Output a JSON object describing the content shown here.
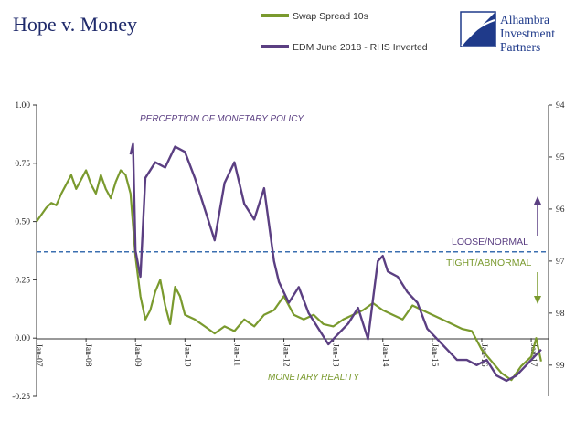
{
  "chart_data": {
    "type": "line",
    "title": "Hope v. Money",
    "x_ticks": [
      "Jan-07",
      "Jan-08",
      "Jan-09",
      "Jan-10",
      "Jan-11",
      "Jan-12",
      "Jan-13",
      "Jan-14",
      "Jan-15",
      "Jan-16",
      "Jan-17"
    ],
    "y_left": {
      "ticks": [
        "1.00",
        "0.75",
        "0.50",
        "0.25",
        "0.00",
        "-0.25"
      ],
      "range": [
        -0.25,
        1.0
      ]
    },
    "y_right": {
      "ticks": [
        "94",
        "95",
        "96",
        "97",
        "98",
        "99"
      ],
      "range": [
        94,
        99.6
      ],
      "inverted": true
    },
    "threshold": 0.37,
    "series": [
      {
        "name": "Swap Spread 10s",
        "axis": "left",
        "color": "#7a9a2e",
        "x": [
          2007.0,
          2007.1,
          2007.2,
          2007.3,
          2007.4,
          2007.5,
          2007.6,
          2007.7,
          2007.8,
          2007.9,
          2008.0,
          2008.1,
          2008.2,
          2008.3,
          2008.4,
          2008.5,
          2008.6,
          2008.7,
          2008.8,
          2008.9,
          2009.0,
          2009.1,
          2009.2,
          2009.3,
          2009.4,
          2009.5,
          2009.6,
          2009.7,
          2009.8,
          2009.9,
          2010.0,
          2010.2,
          2010.4,
          2010.6,
          2010.8,
          2011.0,
          2011.2,
          2011.4,
          2011.6,
          2011.8,
          2012.0,
          2012.2,
          2012.4,
          2012.6,
          2012.8,
          2013.0,
          2013.2,
          2013.4,
          2013.6,
          2013.8,
          2014.0,
          2014.2,
          2014.4,
          2014.6,
          2014.8,
          2015.0,
          2015.2,
          2015.4,
          2015.6,
          2015.8,
          2016.0,
          2016.2,
          2016.4,
          2016.6,
          2016.8,
          2017.0,
          2017.1,
          2017.2
        ],
        "values": [
          0.5,
          0.53,
          0.56,
          0.58,
          0.57,
          0.62,
          0.66,
          0.7,
          0.64,
          0.68,
          0.72,
          0.66,
          0.62,
          0.7,
          0.64,
          0.6,
          0.67,
          0.72,
          0.7,
          0.62,
          0.35,
          0.18,
          0.08,
          0.12,
          0.2,
          0.25,
          0.14,
          0.06,
          0.22,
          0.18,
          0.1,
          0.08,
          0.05,
          0.02,
          0.05,
          0.03,
          0.08,
          0.05,
          0.1,
          0.12,
          0.18,
          0.1,
          0.08,
          0.1,
          0.06,
          0.05,
          0.08,
          0.1,
          0.12,
          0.15,
          0.12,
          0.1,
          0.08,
          0.14,
          0.12,
          0.1,
          0.08,
          0.06,
          0.04,
          0.03,
          -0.05,
          -0.1,
          -0.15,
          -0.18,
          -0.12,
          -0.08,
          0.0,
          -0.1
        ]
      },
      {
        "name": "EDM June 2018 - RHS Inverted",
        "axis": "right",
        "color": "#5b3f82",
        "x": [
          2008.9,
          2008.95,
          2009.0,
          2009.1,
          2009.2,
          2009.4,
          2009.6,
          2009.8,
          2010.0,
          2010.2,
          2010.4,
          2010.6,
          2010.8,
          2011.0,
          2011.2,
          2011.4,
          2011.6,
          2011.8,
          2011.9,
          2012.1,
          2012.3,
          2012.5,
          2012.7,
          2012.9,
          2013.1,
          2013.3,
          2013.5,
          2013.7,
          2013.9,
          2014.0,
          2014.1,
          2014.3,
          2014.5,
          2014.7,
          2014.9,
          2015.1,
          2015.3,
          2015.5,
          2015.7,
          2015.9,
          2016.1,
          2016.3,
          2016.5,
          2016.7,
          2016.9,
          2017.0,
          2017.1,
          2017.2
        ],
        "values": [
          94.95,
          94.75,
          96.8,
          97.3,
          95.4,
          95.1,
          95.2,
          94.8,
          94.9,
          95.4,
          96.0,
          96.6,
          95.5,
          95.1,
          95.9,
          96.2,
          95.6,
          97.0,
          97.4,
          97.8,
          97.5,
          98.0,
          98.3,
          98.6,
          98.4,
          98.2,
          97.9,
          98.5,
          97.0,
          96.9,
          97.2,
          97.3,
          97.6,
          97.8,
          98.3,
          98.5,
          98.7,
          98.9,
          98.9,
          99.0,
          98.9,
          99.2,
          99.3,
          99.2,
          99.0,
          98.9,
          98.8,
          98.7
        ]
      }
    ],
    "annotations": {
      "top": "PERCEPTION OF MONETARY POLICY",
      "bottom": "MONETARY REALITY",
      "loose": "LOOSE/NORMAL",
      "tight": "TIGHT/ABNORMAL"
    }
  },
  "legend": {
    "green_label": "Swap Spread 10s",
    "purple_label": "EDM June 2018 - RHS Inverted"
  },
  "logo": {
    "line1": "Alhambra",
    "line2": "Investment",
    "line3": "Partners"
  },
  "colors": {
    "green": "#7a9a2e",
    "purple": "#5b3f82",
    "dashed": "#3b6fb0",
    "title": "#1f2a6b"
  }
}
